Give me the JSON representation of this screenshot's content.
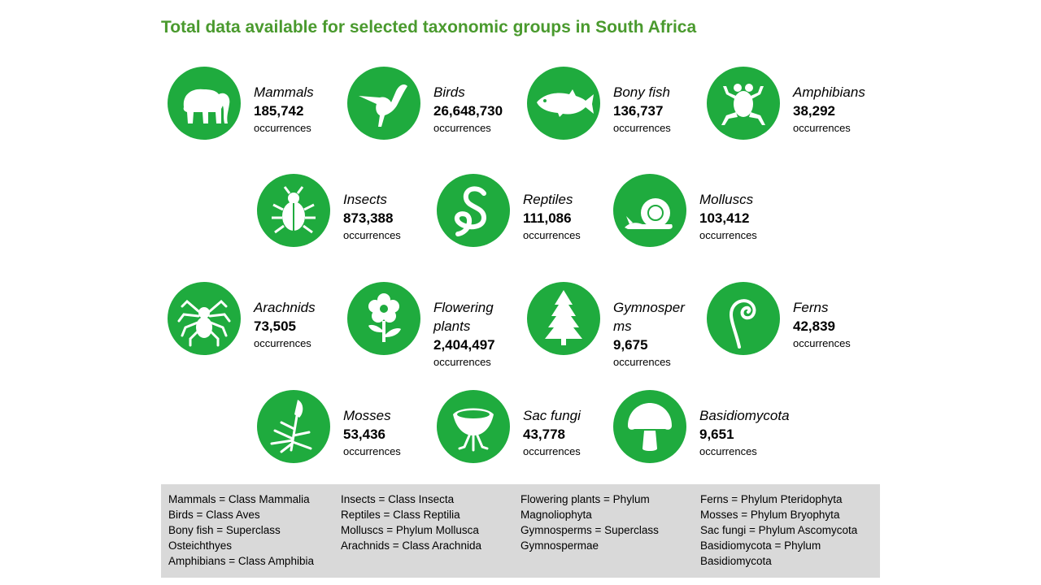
{
  "title": "Total data available for selected taxonomic groups in South Africa",
  "colors": {
    "accent": "#1fab3e",
    "title": "#4a9a2e",
    "legend_bg": "#d9d9d9"
  },
  "groups": [
    {
      "name": "Mammals",
      "count": "185,742",
      "unit": "occurrences",
      "icon": "elephant-icon"
    },
    {
      "name": "Birds",
      "count": "26,648,730",
      "unit": "occurrences",
      "icon": "hummingbird-icon"
    },
    {
      "name": "Bony fish",
      "count": "136,737",
      "unit": "occurrences",
      "icon": "fish-icon"
    },
    {
      "name": "Amphibians",
      "count": "38,292",
      "unit": "occurrences",
      "icon": "frog-icon"
    },
    {
      "name": "Insects",
      "count": "873,388",
      "unit": "occurrences",
      "icon": "beetle-icon"
    },
    {
      "name": "Reptiles",
      "count": "111,086",
      "unit": "occurrences",
      "icon": "snake-icon"
    },
    {
      "name": "Molluscs",
      "count": "103,412",
      "unit": "occurrences",
      "icon": "snail-icon"
    },
    {
      "name": "Arachnids",
      "count": "73,505",
      "unit": "occurrences",
      "icon": "spider-icon"
    },
    {
      "name": "Flowering plants",
      "count": "2,404,497",
      "unit": "occurrences",
      "icon": "flower-icon"
    },
    {
      "name": "Gymnosperms",
      "count": "9,675",
      "unit": "occurrences",
      "icon": "conifer-icon"
    },
    {
      "name": "Ferns",
      "count": "42,839",
      "unit": "occurrences",
      "icon": "fern-icon"
    },
    {
      "name": "Mosses",
      "count": "53,436",
      "unit": "occurrences",
      "icon": "moss-icon"
    },
    {
      "name": "Sac fungi",
      "count": "43,778",
      "unit": "occurrences",
      "icon": "cup-fungus-icon"
    },
    {
      "name": "Basidiomycota",
      "count": "9,651",
      "unit": "occurrences",
      "icon": "mushroom-icon"
    }
  ],
  "legend": [
    [
      "Mammals = Class Mammalia",
      "Birds = Class Aves",
      "Bony fish = Superclass",
      "Osteichthyes",
      "Amphibians = Class Amphibia"
    ],
    [
      "Insects = Class Insecta",
      "Reptiles = Class Reptilia",
      "Molluscs = Phylum Mollusca",
      "Arachnids = Class Arachnida"
    ],
    [
      "Flowering plants = Phylum",
      "Magnoliophyta",
      "Gymnosperms = Superclass",
      "Gymnospermae"
    ],
    [
      "Ferns = Phylum Pteridophyta",
      "Mosses = Phylum Bryophyta",
      "Sac fungi = Phylum Ascomycota",
      "Basidiomycota = Phylum",
      "Basidiomycota"
    ]
  ]
}
